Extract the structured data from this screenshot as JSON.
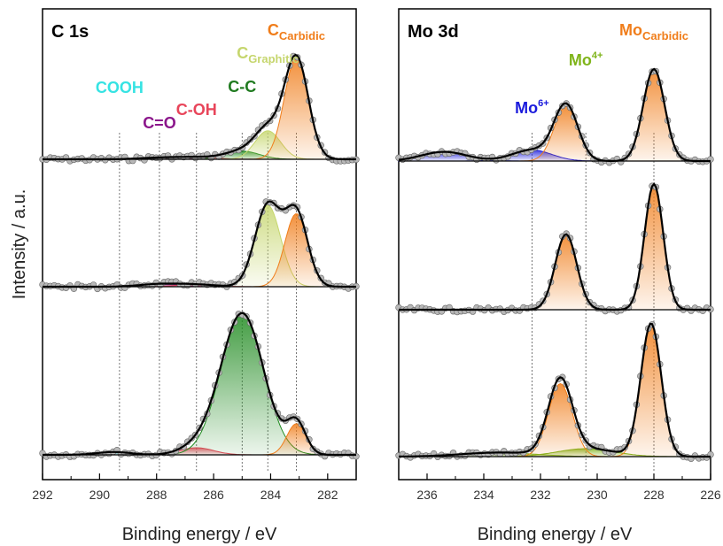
{
  "chart_data": [
    {
      "type": "line",
      "panel_title": "C 1s",
      "xlabel": "Binding energy / eV",
      "ylabel": "Intensity / a.u.",
      "xlim": [
        292,
        281
      ],
      "x_reversed": true,
      "xticks": [
        292,
        290,
        288,
        286,
        284,
        282
      ],
      "grid": false,
      "reference_lines": [
        289.3,
        287.9,
        286.6,
        285.0,
        284.1,
        283.1
      ],
      "peak_labels": [
        {
          "text": "COOH",
          "sub": "",
          "sup": "",
          "color": "#36e3e3",
          "x": 289.3
        },
        {
          "text": "C=O",
          "sub": "",
          "sup": "",
          "color": "#8b168b",
          "x": 287.9
        },
        {
          "text": "C-OH",
          "sub": "",
          "sup": "",
          "color": "#e8455a",
          "x": 286.6
        },
        {
          "text": "C-C",
          "sub": "",
          "sup": "",
          "color": "#1f7a1f",
          "x": 285.0
        },
        {
          "text": "C",
          "sub": "Graphitic",
          "sup": "",
          "color": "#c6d66e",
          "x": 284.1
        },
        {
          "text": "C",
          "sub": "Carbidic",
          "sup": "",
          "color": "#f07d1a",
          "x": 283.1
        }
      ],
      "spectra": [
        {
          "position": "top",
          "components": [
            {
              "label": "COOH",
              "center": 289.3,
              "height": 0.0,
              "width": 0.6
            },
            {
              "label": "C=O",
              "center": 287.9,
              "height": 0.015,
              "width": 0.7
            },
            {
              "label": "C-OH",
              "center": 286.6,
              "height": 0.02,
              "width": 0.7
            },
            {
              "label": "C-C",
              "center": 285.0,
              "height": 0.08,
              "width": 0.6
            },
            {
              "label": "C Graphitic",
              "center": 284.1,
              "height": 0.28,
              "width": 0.45
            },
            {
              "label": "C Carbidic",
              "center": 283.1,
              "height": 1.0,
              "width": 0.42
            }
          ]
        },
        {
          "position": "middle",
          "components": [
            {
              "label": "COOH",
              "center": 289.3,
              "height": 0.0,
              "width": 0.6
            },
            {
              "label": "C=O",
              "center": 287.9,
              "height": 0.025,
              "width": 0.7
            },
            {
              "label": "C-OH",
              "center": 286.6,
              "height": 0.02,
              "width": 0.7
            },
            {
              "label": "C-C",
              "center": 285.0,
              "height": 0.0,
              "width": 0.6
            },
            {
              "label": "C Graphitic",
              "center": 284.1,
              "height": 0.78,
              "width": 0.45
            },
            {
              "label": "C Carbidic",
              "center": 283.1,
              "height": 0.7,
              "width": 0.4
            }
          ]
        },
        {
          "position": "bottom",
          "components": [
            {
              "label": "COOH",
              "center": 289.5,
              "height": 0.02,
              "width": 0.6
            },
            {
              "label": "C=O",
              "center": 287.9,
              "height": 0.0,
              "width": 0.7
            },
            {
              "label": "C-OH",
              "center": 286.6,
              "height": 0.05,
              "width": 0.6
            },
            {
              "label": "C-C",
              "center": 285.0,
              "height": 1.0,
              "width": 0.75
            },
            {
              "label": "C Graphitic",
              "center": 284.1,
              "height": 0.0,
              "width": 0.45
            },
            {
              "label": "C Carbidic",
              "center": 283.1,
              "height": 0.22,
              "width": 0.33
            }
          ]
        }
      ]
    },
    {
      "type": "line",
      "panel_title": "Mo 3d",
      "xlabel": "Binding energy / eV",
      "xlim": [
        237,
        226
      ],
      "x_reversed": true,
      "xticks": [
        236,
        234,
        232,
        230,
        228,
        226
      ],
      "grid": false,
      "reference_lines": [
        232.3,
        230.4,
        228.0
      ],
      "peak_labels": [
        {
          "text": "Mo",
          "sub": "",
          "sup": "6+",
          "color": "#1a1adc",
          "x": 232.3
        },
        {
          "text": "Mo",
          "sub": "",
          "sup": "4+",
          "color": "#7fb41a",
          "x": 230.4
        },
        {
          "text": "Mo",
          "sub": "Carbidic",
          "sup": "",
          "color": "#f07d1a",
          "x": 228.0
        }
      ],
      "spectra": [
        {
          "position": "top",
          "components": [
            {
              "label": "Mo6+ 3d3/2",
              "center": 235.4,
              "height": 0.1,
              "width": 0.8
            },
            {
              "label": "Mo6+ 3d5/2",
              "center": 232.3,
              "height": 0.12,
              "width": 0.7
            },
            {
              "label": "Mo Carbidic 3d3/2",
              "center": 231.1,
              "height": 0.6,
              "width": 0.42
            },
            {
              "label": "Mo Carbidic 3d5/2",
              "center": 228.0,
              "height": 1.0,
              "width": 0.38
            }
          ]
        },
        {
          "position": "middle",
          "components": [
            {
              "label": "Mo Carbidic 3d3/2",
              "center": 231.1,
              "height": 0.6,
              "width": 0.38
            },
            {
              "label": "Mo Carbidic 3d5/2",
              "center": 228.0,
              "height": 1.0,
              "width": 0.33
            }
          ]
        },
        {
          "position": "bottom",
          "components": [
            {
              "label": "Mo4+ 3d3/2",
              "center": 233.5,
              "height": 0.03,
              "width": 1.3
            },
            {
              "label": "Mo4+ 3d5/2",
              "center": 230.4,
              "height": 0.06,
              "width": 1.0
            },
            {
              "label": "Mo Carbidic 3d3/2",
              "center": 231.3,
              "height": 0.55,
              "width": 0.42
            },
            {
              "label": "Mo Carbidic 3d5/2",
              "center": 228.1,
              "height": 1.0,
              "width": 0.36
            }
          ]
        }
      ]
    }
  ]
}
